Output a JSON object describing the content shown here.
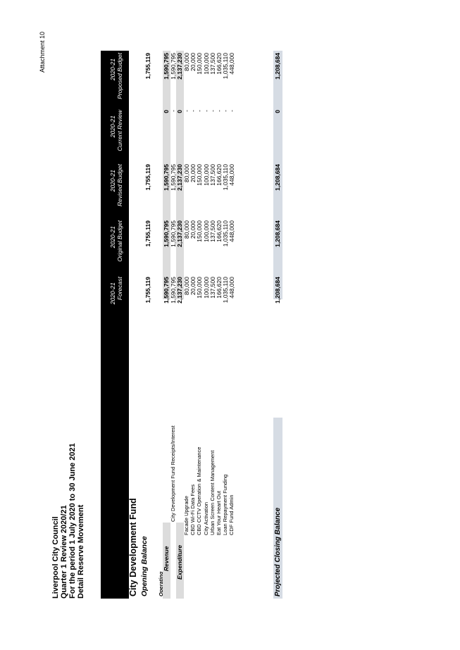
{
  "attachment": "Attachment 10",
  "header": {
    "line1": "Liverpool City Council",
    "line2": "Quarter 1 Review 2020/21",
    "line3": "For the period 1 July 2020 to 30 June 2021",
    "line4": "Detail Reserve Movement"
  },
  "columns": [
    {
      "year": "2020-21",
      "label": "Forecast"
    },
    {
      "year": "2020-21",
      "label": "Original Budget"
    },
    {
      "year": "2020-21",
      "label": "Revised Budget"
    },
    {
      "year": "2020-21",
      "label": "Current Review"
    },
    {
      "year": "2020-21",
      "label": "Proposed Budget"
    }
  ],
  "fund_title": "City Development Fund",
  "opening": {
    "label": "Opening Balance",
    "values": [
      "1,755,119",
      "1,755,119",
      "1,755,119",
      "",
      "1,755,119"
    ]
  },
  "operating_label": "Operating",
  "revenue": {
    "label": "Revenue",
    "values": [
      "1,590,795",
      "1,590,795",
      "1,590,795",
      "0",
      "1,590,795"
    ]
  },
  "revenue_items": [
    {
      "label": "City Development Fund Receipts/Interest",
      "values": [
        "1,590,795",
        "1,590,795",
        "1,590,795",
        "-",
        "1,590,795"
      ]
    }
  ],
  "expenditure": {
    "label": "Expenditure",
    "values": [
      "2,137,230",
      "2,137,230",
      "2,137,230",
      "0",
      "2,137,230"
    ]
  },
  "expenditure_items": [
    {
      "label": "Facade Upgrade",
      "values": [
        "80,000",
        "80,000",
        "80,000",
        "-",
        "80,000"
      ]
    },
    {
      "label": "CBD Wi-Fi Data Fees",
      "values": [
        "20,000",
        "20,000",
        "20,000",
        "-",
        "20,000"
      ]
    },
    {
      "label": "CBD CCTV Operation & Maintenance",
      "values": [
        "150,000",
        "150,000",
        "150,000",
        "-",
        "150,000"
      ]
    },
    {
      "label": "City Activation",
      "values": [
        "100,000",
        "100,000",
        "100,000",
        "-",
        "100,000"
      ]
    },
    {
      "label": "Urban Screen Content Management",
      "values": [
        "137,500",
        "137,500",
        "137,500",
        "-",
        "137,500"
      ]
    },
    {
      "label": "Eat Your Heart Out",
      "values": [
        "166,620",
        "166,620",
        "166,620",
        "-",
        "166,620"
      ]
    },
    {
      "label": "Loan Repayment Funding",
      "values": [
        "1,035,110",
        "1,035,110",
        "1,035,110",
        "-",
        "1,035,110"
      ]
    },
    {
      "label": "CDF Fund Admin",
      "values": [
        "448,000",
        "448,000",
        "448,000",
        "-",
        "448,000"
      ]
    }
  ],
  "closing": {
    "label": "Projected Closing Balance",
    "values": [
      "1,208,684",
      "1,208,684",
      "1,208,684",
      "0",
      "1,208,684"
    ]
  },
  "colors": {
    "header_bg": "#000000",
    "subtotal_band": "#dcdcdc",
    "closing_band": "#d6dce4"
  }
}
